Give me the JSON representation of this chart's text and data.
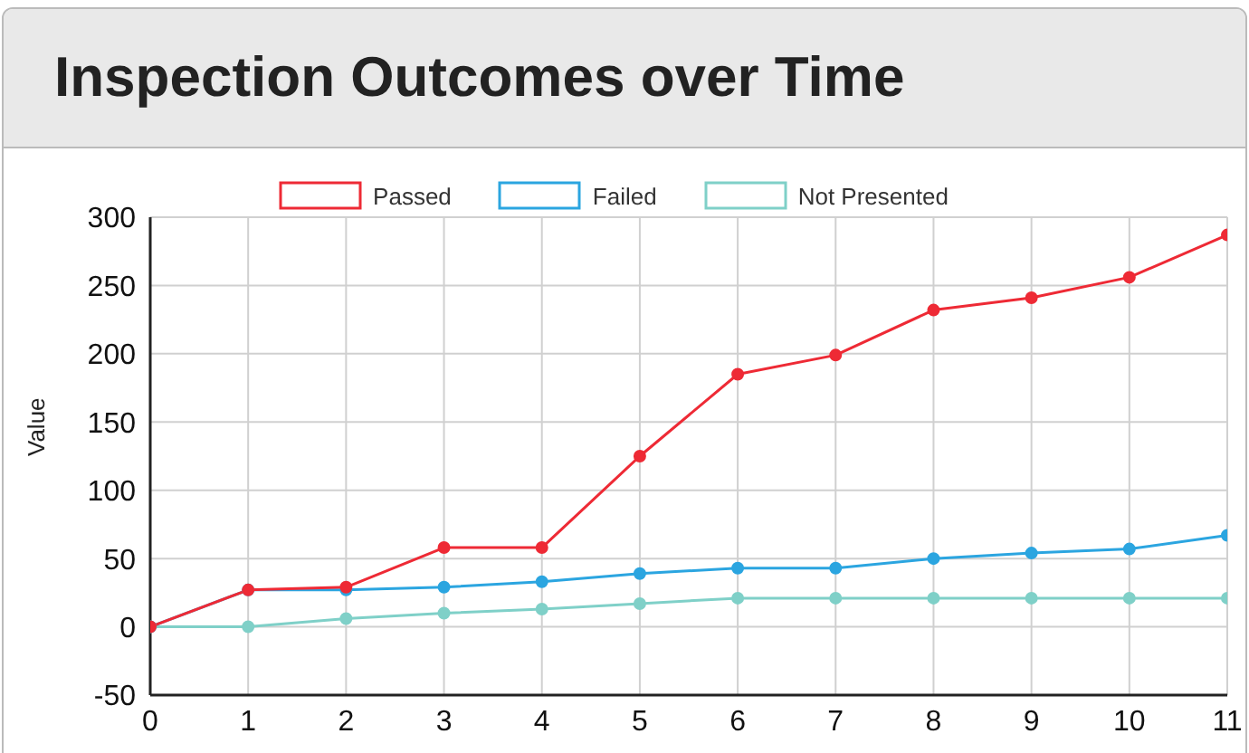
{
  "chart_data": {
    "type": "line",
    "title": "Inspection Outcomes over Time",
    "ylabel": "Value",
    "x": [
      0,
      1,
      2,
      3,
      4,
      5,
      6,
      7,
      8,
      9,
      10,
      11
    ],
    "series": [
      {
        "name": "Passed",
        "color": "#ee2a35",
        "values": [
          0,
          27,
          29,
          58,
          58,
          125,
          185,
          199,
          232,
          241,
          256,
          287
        ]
      },
      {
        "name": "Failed",
        "color": "#2ba5e0",
        "values": [
          0,
          27,
          27,
          29,
          33,
          39,
          43,
          43,
          50,
          54,
          57,
          67
        ]
      },
      {
        "name": "Not Presented",
        "color": "#7fd0c8",
        "values": [
          0,
          0,
          6,
          10,
          13,
          17,
          21,
          21,
          21,
          21,
          21,
          21
        ]
      }
    ],
    "xlim": [
      0,
      11
    ],
    "xticks": [
      0,
      1,
      2,
      3,
      4,
      5,
      6,
      7,
      8,
      9,
      10,
      11
    ],
    "ylim": [
      -50,
      300
    ],
    "yticks": [
      -50,
      0,
      50,
      100,
      150,
      200,
      250,
      300
    ],
    "grid": true,
    "legend": "top",
    "marker": "circle",
    "line_style": "solid"
  }
}
